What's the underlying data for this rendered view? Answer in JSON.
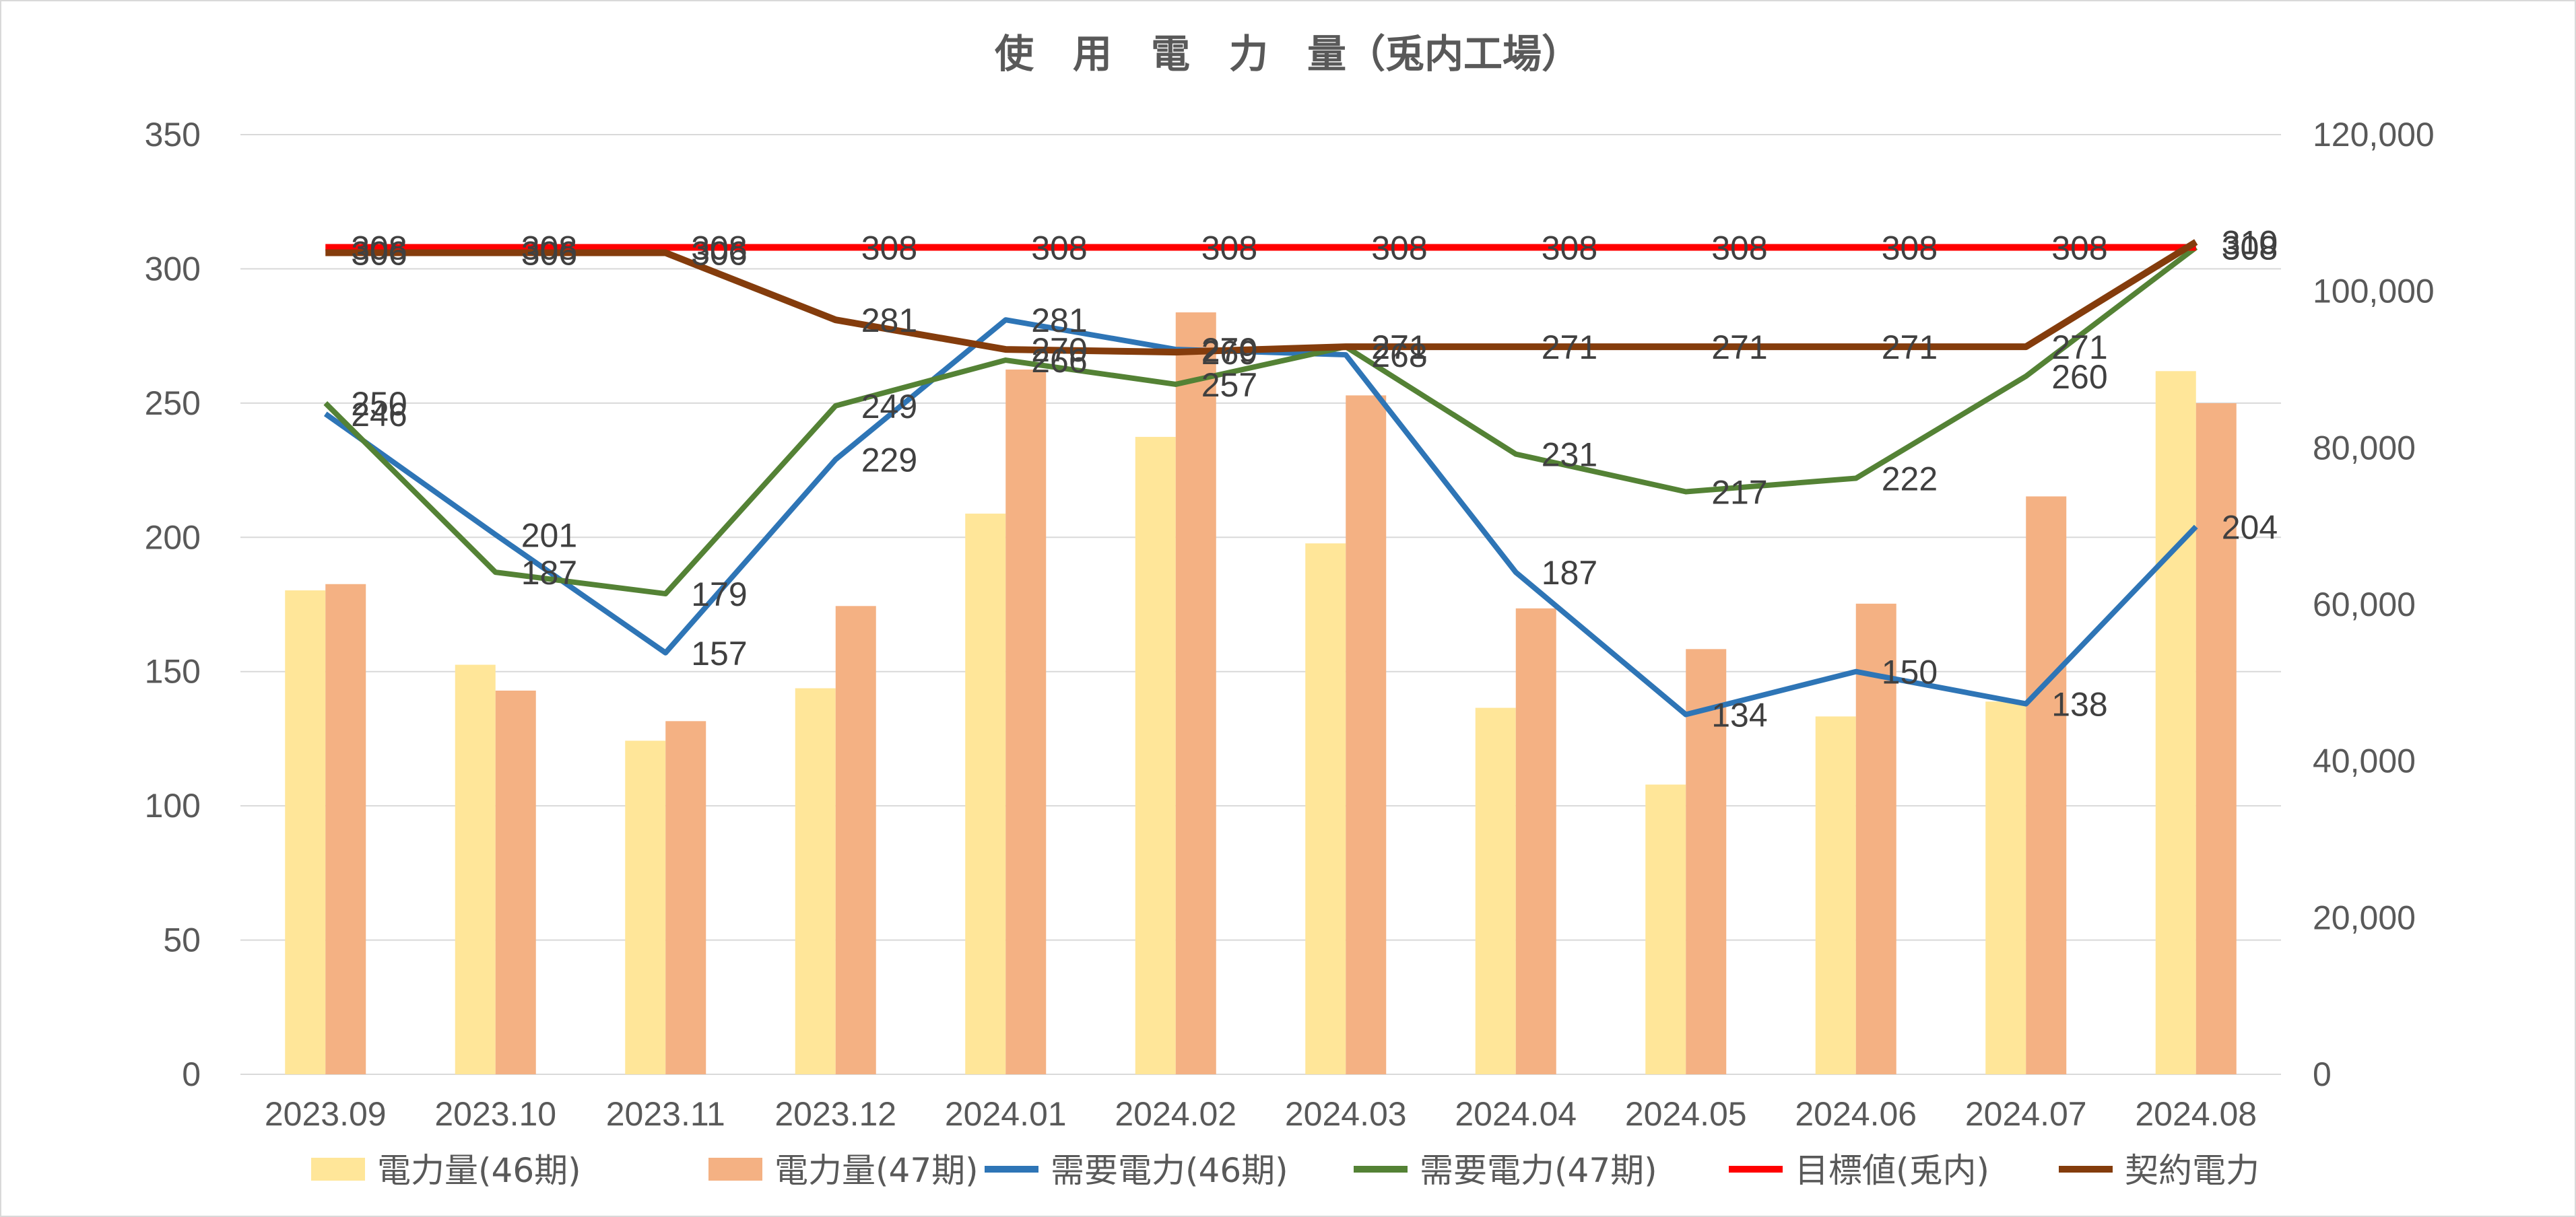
{
  "chart_data": {
    "type": "bar",
    "title": "使　用　電　力　量（兎内工場）",
    "categories": [
      "2023.09",
      "2023.10",
      "2023.11",
      "2023.12",
      "2024.01",
      "2024.02",
      "2024.03",
      "2024.04",
      "2024.05",
      "2024.06",
      "2024.07",
      "2024.08"
    ],
    "ylim_left": [
      0,
      350
    ],
    "yticks_left": [
      "0",
      "50",
      "100",
      "150",
      "200",
      "250",
      "300",
      "350"
    ],
    "ylim_right": [
      0,
      120000
    ],
    "yticks_right": [
      "0",
      "20,000",
      "40,000",
      "60,000",
      "80,000",
      "100,000",
      "120,000"
    ],
    "grid": true,
    "legend_position": "bottom",
    "series": [
      {
        "name": "電力量(46期)",
        "kind": "bar",
        "axis": "right",
        "color": "#FFE699",
        "values": [
          61800,
          52300,
          42600,
          49300,
          71600,
          81400,
          67800,
          46800,
          37000,
          45700,
          47600,
          89800
        ]
      },
      {
        "name": "電力量(47期)",
        "kind": "bar",
        "axis": "right",
        "color": "#F4B183",
        "values": [
          62600,
          49000,
          45100,
          59800,
          90000,
          97300,
          86700,
          59500,
          54300,
          60100,
          73800,
          85700
        ]
      },
      {
        "name": "需要電力(46期)",
        "kind": "line",
        "axis": "left",
        "color": "#2E75B6",
        "values": [
          246,
          201,
          157,
          229,
          281,
          270,
          268,
          187,
          134,
          150,
          138,
          204
        ],
        "labels": [
          "246",
          "201",
          "157",
          "229",
          "281",
          "270",
          "268",
          "187",
          "134",
          "150",
          "138",
          "204"
        ]
      },
      {
        "name": "需要電力(47期)",
        "kind": "line",
        "axis": "left",
        "color": "#548235",
        "values": [
          250,
          187,
          179,
          249,
          266,
          257,
          271,
          231,
          217,
          222,
          260,
          308
        ],
        "labels": [
          "250",
          "187",
          "179",
          "249",
          "266",
          "257",
          "271",
          "231",
          "217",
          "222",
          "260",
          "308"
        ]
      },
      {
        "name": "目標値(兎内)",
        "kind": "line",
        "axis": "left",
        "color": "#FF0000",
        "values": [
          308,
          308,
          308,
          308,
          308,
          308,
          308,
          308,
          308,
          308,
          308,
          308
        ],
        "labels": [
          "308",
          "308",
          "308",
          "308",
          "308",
          "308",
          "308",
          "308",
          "308",
          "308",
          "308",
          "308"
        ]
      },
      {
        "name": "契約電力",
        "kind": "line",
        "axis": "left",
        "color": "#843C0C",
        "values": [
          306,
          306,
          306,
          281,
          270,
          269,
          271,
          271,
          271,
          271,
          271,
          310
        ],
        "labels": [
          "306",
          "306",
          "306",
          "281",
          "270",
          "269",
          "271",
          "271",
          "271",
          "271",
          "271",
          "310"
        ]
      }
    ]
  }
}
